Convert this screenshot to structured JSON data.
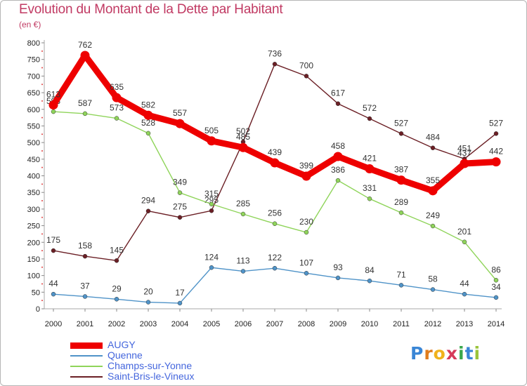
{
  "header": {
    "title": "Evolution du Montant de la Dette par Habitant",
    "subtitle": "(en €)"
  },
  "logo": {
    "letters": [
      "P",
      "r",
      "o",
      "x",
      "i",
      "t",
      "i"
    ],
    "colors": [
      "#3a86d6",
      "#e07c1c",
      "#f0b21c",
      "#d63a5a",
      "#3aa84c",
      "#3a86d6",
      "#9ac43a"
    ]
  },
  "chart_data": {
    "type": "line",
    "x": [
      2000,
      2001,
      2002,
      2003,
      2004,
      2005,
      2006,
      2007,
      2008,
      2009,
      2010,
      2011,
      2012,
      2013,
      2014
    ],
    "ylim": [
      0,
      800
    ],
    "yticks": [
      0,
      50,
      100,
      150,
      200,
      250,
      300,
      350,
      400,
      450,
      500,
      550,
      600,
      650,
      700,
      750,
      800
    ],
    "grid": false,
    "legend_position": "bottom-left",
    "series": [
      {
        "name": "Saint-Bris-le-Vineux",
        "color": "#6b1f25",
        "values": [
          175,
          158,
          145,
          294,
          275,
          295,
          502,
          736,
          700,
          617,
          572,
          527,
          484,
          451,
          527
        ]
      },
      {
        "name": "Champs-sur-Yonne",
        "color": "#8fd45a",
        "values": [
          593,
          587,
          573,
          528,
          349,
          315,
          285,
          256,
          230,
          386,
          331,
          289,
          249,
          201,
          86
        ]
      },
      {
        "name": "Quenne",
        "color": "#4f93c8",
        "values": [
          44,
          37,
          29,
          20,
          17,
          124,
          113,
          122,
          107,
          93,
          84,
          71,
          58,
          44,
          34
        ]
      },
      {
        "name": "AUGY",
        "color": "#ee0000",
        "values": [
          613,
          762,
          635,
          582,
          557,
          505,
          485,
          439,
          399,
          458,
          421,
          387,
          355,
          437,
          442
        ]
      }
    ],
    "legend_order": [
      "AUGY",
      "Quenne",
      "Champs-sur-Yonne",
      "Saint-Bris-le-Vineux"
    ]
  }
}
